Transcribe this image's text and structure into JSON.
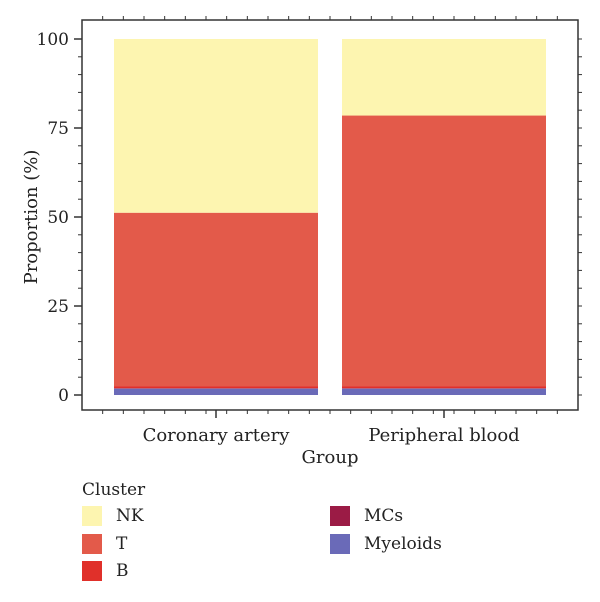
{
  "chart_data": {
    "type": "bar",
    "stacked": true,
    "categories": [
      "Coronary artery",
      "Peripheral blood"
    ],
    "series": [
      {
        "name": "Myeloids",
        "color": "#6a6ab8",
        "values": [
          1.8,
          1.8
        ]
      },
      {
        "name": "MCs",
        "color": "#9b1b45",
        "values": [
          0.1,
          0.1
        ]
      },
      {
        "name": "B",
        "color": "#e0302a",
        "values": [
          0.6,
          0.6
        ]
      },
      {
        "name": "T",
        "color": "#e35a4a",
        "values": [
          48.7,
          76.0
        ]
      },
      {
        "name": "NK",
        "color": "#fdf5b0",
        "values": [
          48.8,
          21.5
        ]
      }
    ],
    "xlabel": "Group",
    "ylabel": "Proportion (%)",
    "ylim": [
      0,
      100
    ],
    "yticks": [
      0,
      25,
      50,
      75,
      100
    ],
    "ytick_labels": [
      "0",
      "25",
      "50",
      "75",
      "100"
    ],
    "grid": false,
    "legend": {
      "title": "Cluster",
      "placement": "bottom",
      "entries": [
        {
          "label": "NK",
          "color": "#fdf5b0"
        },
        {
          "label": "T",
          "color": "#e35a4a"
        },
        {
          "label": "B",
          "color": "#e0302a"
        },
        {
          "label": "MCs",
          "color": "#9b1b45"
        },
        {
          "label": "Myeloids",
          "color": "#6a6ab8"
        }
      ]
    }
  }
}
